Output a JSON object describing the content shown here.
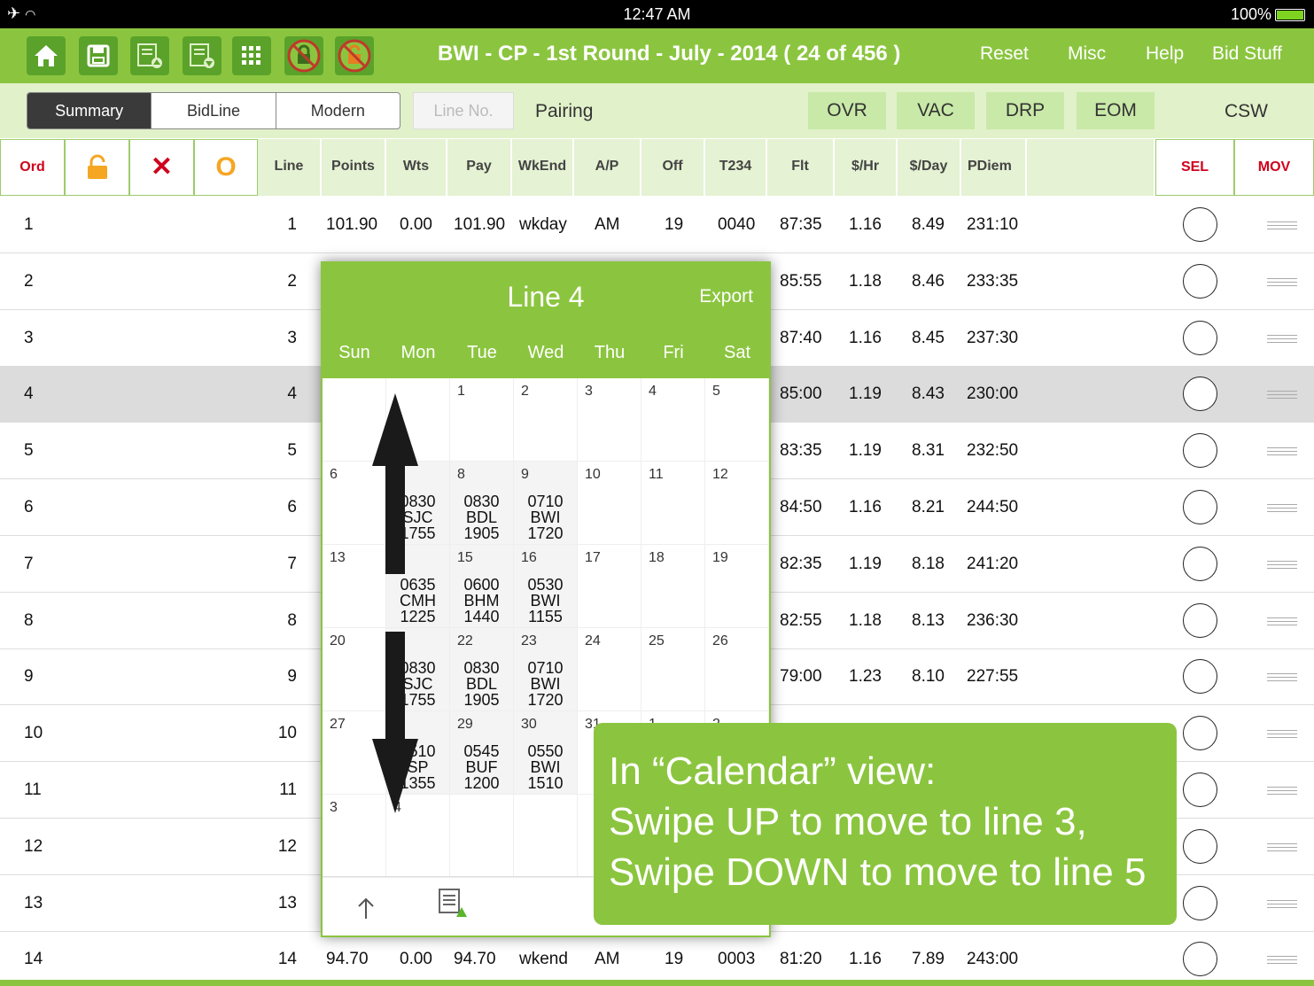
{
  "status": {
    "time": "12:47 AM",
    "battery": "100%"
  },
  "topbar": {
    "title": "BWI - CP - 1st Round - July - 2014 ( 24 of 456 )",
    "menu": [
      "Reset",
      "Misc",
      "Help",
      "Bid Stuff"
    ]
  },
  "tabs": {
    "segments": [
      "Summary",
      "BidLine",
      "Modern"
    ],
    "active": "Summary",
    "line_no_placeholder": "Line No.",
    "pairing": "Pairing",
    "options": [
      "OVR",
      "VAC",
      "DRP",
      "EOM"
    ],
    "csw": "CSW"
  },
  "columns": [
    "Ord",
    "Line",
    "Points",
    "Wts",
    "Pay",
    "WkEnd",
    "A/P",
    "Off",
    "T234",
    "Flt",
    "$/Hr",
    "$/Day",
    "PDiem",
    "SEL",
    "MOV"
  ],
  "rows": [
    {
      "ord": "1",
      "line": "1",
      "points": "101.90",
      "wts": "0.00",
      "pay": "101.90",
      "wkend": "wkday",
      "ap": "AM",
      "off": "19",
      "t234": "0040",
      "flt": "87:35",
      "hr": "1.16",
      "day": "8.49",
      "pdiem": "231:10"
    },
    {
      "ord": "2",
      "line": "2",
      "flt": "85:55",
      "hr": "1.18",
      "day": "8.46",
      "pdiem": "233:35"
    },
    {
      "ord": "3",
      "line": "3",
      "flt": "87:40",
      "hr": "1.16",
      "day": "8.45",
      "pdiem": "237:30"
    },
    {
      "ord": "4",
      "line": "4",
      "flt": "85:00",
      "hr": "1.19",
      "day": "8.43",
      "pdiem": "230:00",
      "selected": true
    },
    {
      "ord": "5",
      "line": "5",
      "flt": "83:35",
      "hr": "1.19",
      "day": "8.31",
      "pdiem": "232:50"
    },
    {
      "ord": "6",
      "line": "6",
      "flt": "84:50",
      "hr": "1.16",
      "day": "8.21",
      "pdiem": "244:50"
    },
    {
      "ord": "7",
      "line": "7",
      "flt": "82:35",
      "hr": "1.19",
      "day": "8.18",
      "pdiem": "241:20"
    },
    {
      "ord": "8",
      "line": "8",
      "flt": "82:55",
      "hr": "1.18",
      "day": "8.13",
      "pdiem": "236:30"
    },
    {
      "ord": "9",
      "line": "9",
      "flt": "79:00",
      "hr": "1.23",
      "day": "8.10",
      "pdiem": "227:55"
    },
    {
      "ord": "10",
      "line": "10"
    },
    {
      "ord": "11",
      "line": "11"
    },
    {
      "ord": "12",
      "line": "12"
    },
    {
      "ord": "13",
      "line": "13"
    },
    {
      "ord": "14",
      "line": "14",
      "points": "94.70",
      "wts": "0.00",
      "pay": "94.70",
      "wkend": "wkend",
      "ap": "AM",
      "off": "19",
      "t234": "0003",
      "flt": "81:20",
      "hr": "1.16",
      "day": "7.89",
      "pdiem": "243:00"
    }
  ],
  "calendar": {
    "title": "Line 4",
    "export": "Export",
    "days": [
      "Sun",
      "Mon",
      "Tue",
      "Wed",
      "Thu",
      "Fri",
      "Sat"
    ],
    "weeks": [
      [
        {
          "d": ""
        },
        {
          "d": ""
        },
        {
          "d": "1"
        },
        {
          "d": "2"
        },
        {
          "d": "3"
        },
        {
          "d": "4"
        },
        {
          "d": "5"
        }
      ],
      [
        {
          "d": "6"
        },
        {
          "d": "",
          "t": [
            "0830",
            "SJC",
            "1755"
          ]
        },
        {
          "d": "8",
          "t": [
            "0830",
            "BDL",
            "1905"
          ]
        },
        {
          "d": "9",
          "t": [
            "0710",
            "BWI",
            "1720"
          ]
        },
        {
          "d": "10"
        },
        {
          "d": "11"
        },
        {
          "d": "12"
        }
      ],
      [
        {
          "d": "13"
        },
        {
          "d": "4",
          "t": [
            "0635",
            "CMH",
            "1225"
          ]
        },
        {
          "d": "15",
          "t": [
            "0600",
            "BHM",
            "1440"
          ]
        },
        {
          "d": "16",
          "t": [
            "0530",
            "BWI",
            "1155"
          ]
        },
        {
          "d": "17"
        },
        {
          "d": "18"
        },
        {
          "d": "19"
        }
      ],
      [
        {
          "d": "20"
        },
        {
          "d": "1",
          "t": [
            "0830",
            "SJC",
            "1755"
          ]
        },
        {
          "d": "22",
          "t": [
            "0830",
            "BDL",
            "1905"
          ]
        },
        {
          "d": "23",
          "t": [
            "0710",
            "BWI",
            "1720"
          ]
        },
        {
          "d": "24"
        },
        {
          "d": "25"
        },
        {
          "d": "26"
        }
      ],
      [
        {
          "d": "27"
        },
        {
          "d": "8",
          "t": [
            "0510",
            "SP",
            "1355"
          ]
        },
        {
          "d": "29",
          "t": [
            "0545",
            "BUF",
            "1200"
          ]
        },
        {
          "d": "30",
          "t": [
            "0550",
            "BWI",
            "1510"
          ]
        },
        {
          "d": "31"
        },
        {
          "d": "1"
        },
        {
          "d": "2"
        }
      ],
      [
        {
          "d": "3"
        },
        {
          "d": "4"
        },
        {
          "d": ""
        },
        {
          "d": ""
        },
        {
          "d": ""
        },
        {
          "d": ""
        },
        {
          "d": ""
        }
      ]
    ]
  },
  "callout": {
    "line1": "In “Calendar” view:",
    "line2": "Swipe UP to move to line 3,",
    "line3": "Swipe DOWN to move to line 5"
  },
  "colors": {
    "accent": "#8bc53f",
    "dark_green": "#5aa22a",
    "red": "#d0021b",
    "orange": "#f5a623",
    "selected_row": "#dcdcdc"
  },
  "icons": [
    "airplane-icon",
    "wifi-icon",
    "battery-icon",
    "home-icon",
    "save-icon",
    "bid-up-icon",
    "bid-down-icon",
    "grid-icon",
    "lock-icon",
    "unlock-icon",
    "delete-icon",
    "circle-icon",
    "radio-icon",
    "drag-handle-icon",
    "up-arrow-icon"
  ]
}
